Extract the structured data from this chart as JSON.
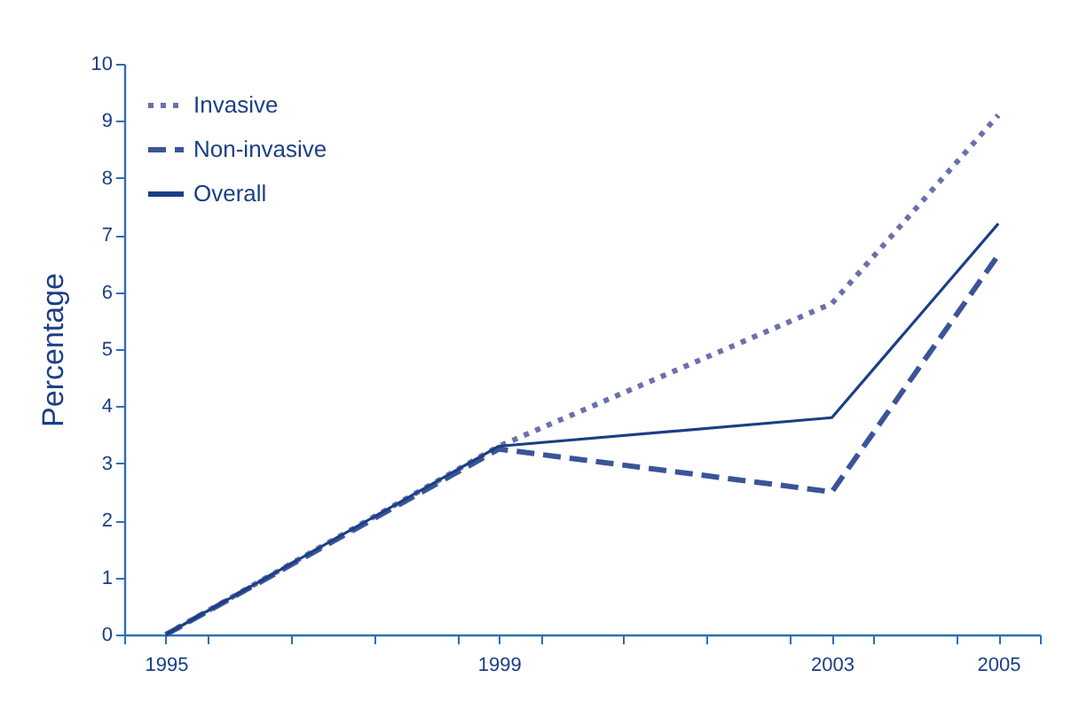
{
  "chart_data": {
    "type": "line",
    "ylabel": "Percentage",
    "x": [
      1995,
      1999,
      2003,
      2005
    ],
    "xlim": [
      1994.5,
      2005.5
    ],
    "xticks": [
      {
        "value": 1994.5,
        "label": null
      },
      1995,
      {
        "value": 1995.5,
        "label": null
      },
      {
        "value": 1996.5,
        "label": null
      },
      {
        "value": 1997.5,
        "label": null
      },
      {
        "value": 1998.5,
        "label": null
      },
      1999,
      {
        "value": 1999.5,
        "label": null
      },
      {
        "value": 2000.5,
        "label": null
      },
      {
        "value": 2001.5,
        "label": null
      },
      {
        "value": 2002.5,
        "label": null
      },
      2003,
      {
        "value": 2003.5,
        "label": null
      },
      {
        "value": 2004.5,
        "label": null
      },
      2005,
      {
        "value": 2005.5,
        "label": null
      }
    ],
    "ylim": [
      0,
      10
    ],
    "yticks": [
      0,
      1,
      2,
      3,
      4,
      5,
      6,
      7,
      8,
      9,
      10
    ],
    "series": [
      {
        "name": "Invasive",
        "color": "#6a70ad",
        "line_style": "dotted",
        "values": [
          0,
          3.3,
          5.8,
          9.1
        ]
      },
      {
        "name": "Non-invasive",
        "color": "#3b5499",
        "line_style": "dashed",
        "values": [
          0,
          3.25,
          2.5,
          6.65
        ]
      },
      {
        "name": "Overall",
        "color": "#1a3f85",
        "line_style": "solid",
        "values": [
          0,
          3.3,
          3.8,
          7.2
        ]
      }
    ],
    "grid": false,
    "legend": "top left",
    "marker": "none"
  }
}
